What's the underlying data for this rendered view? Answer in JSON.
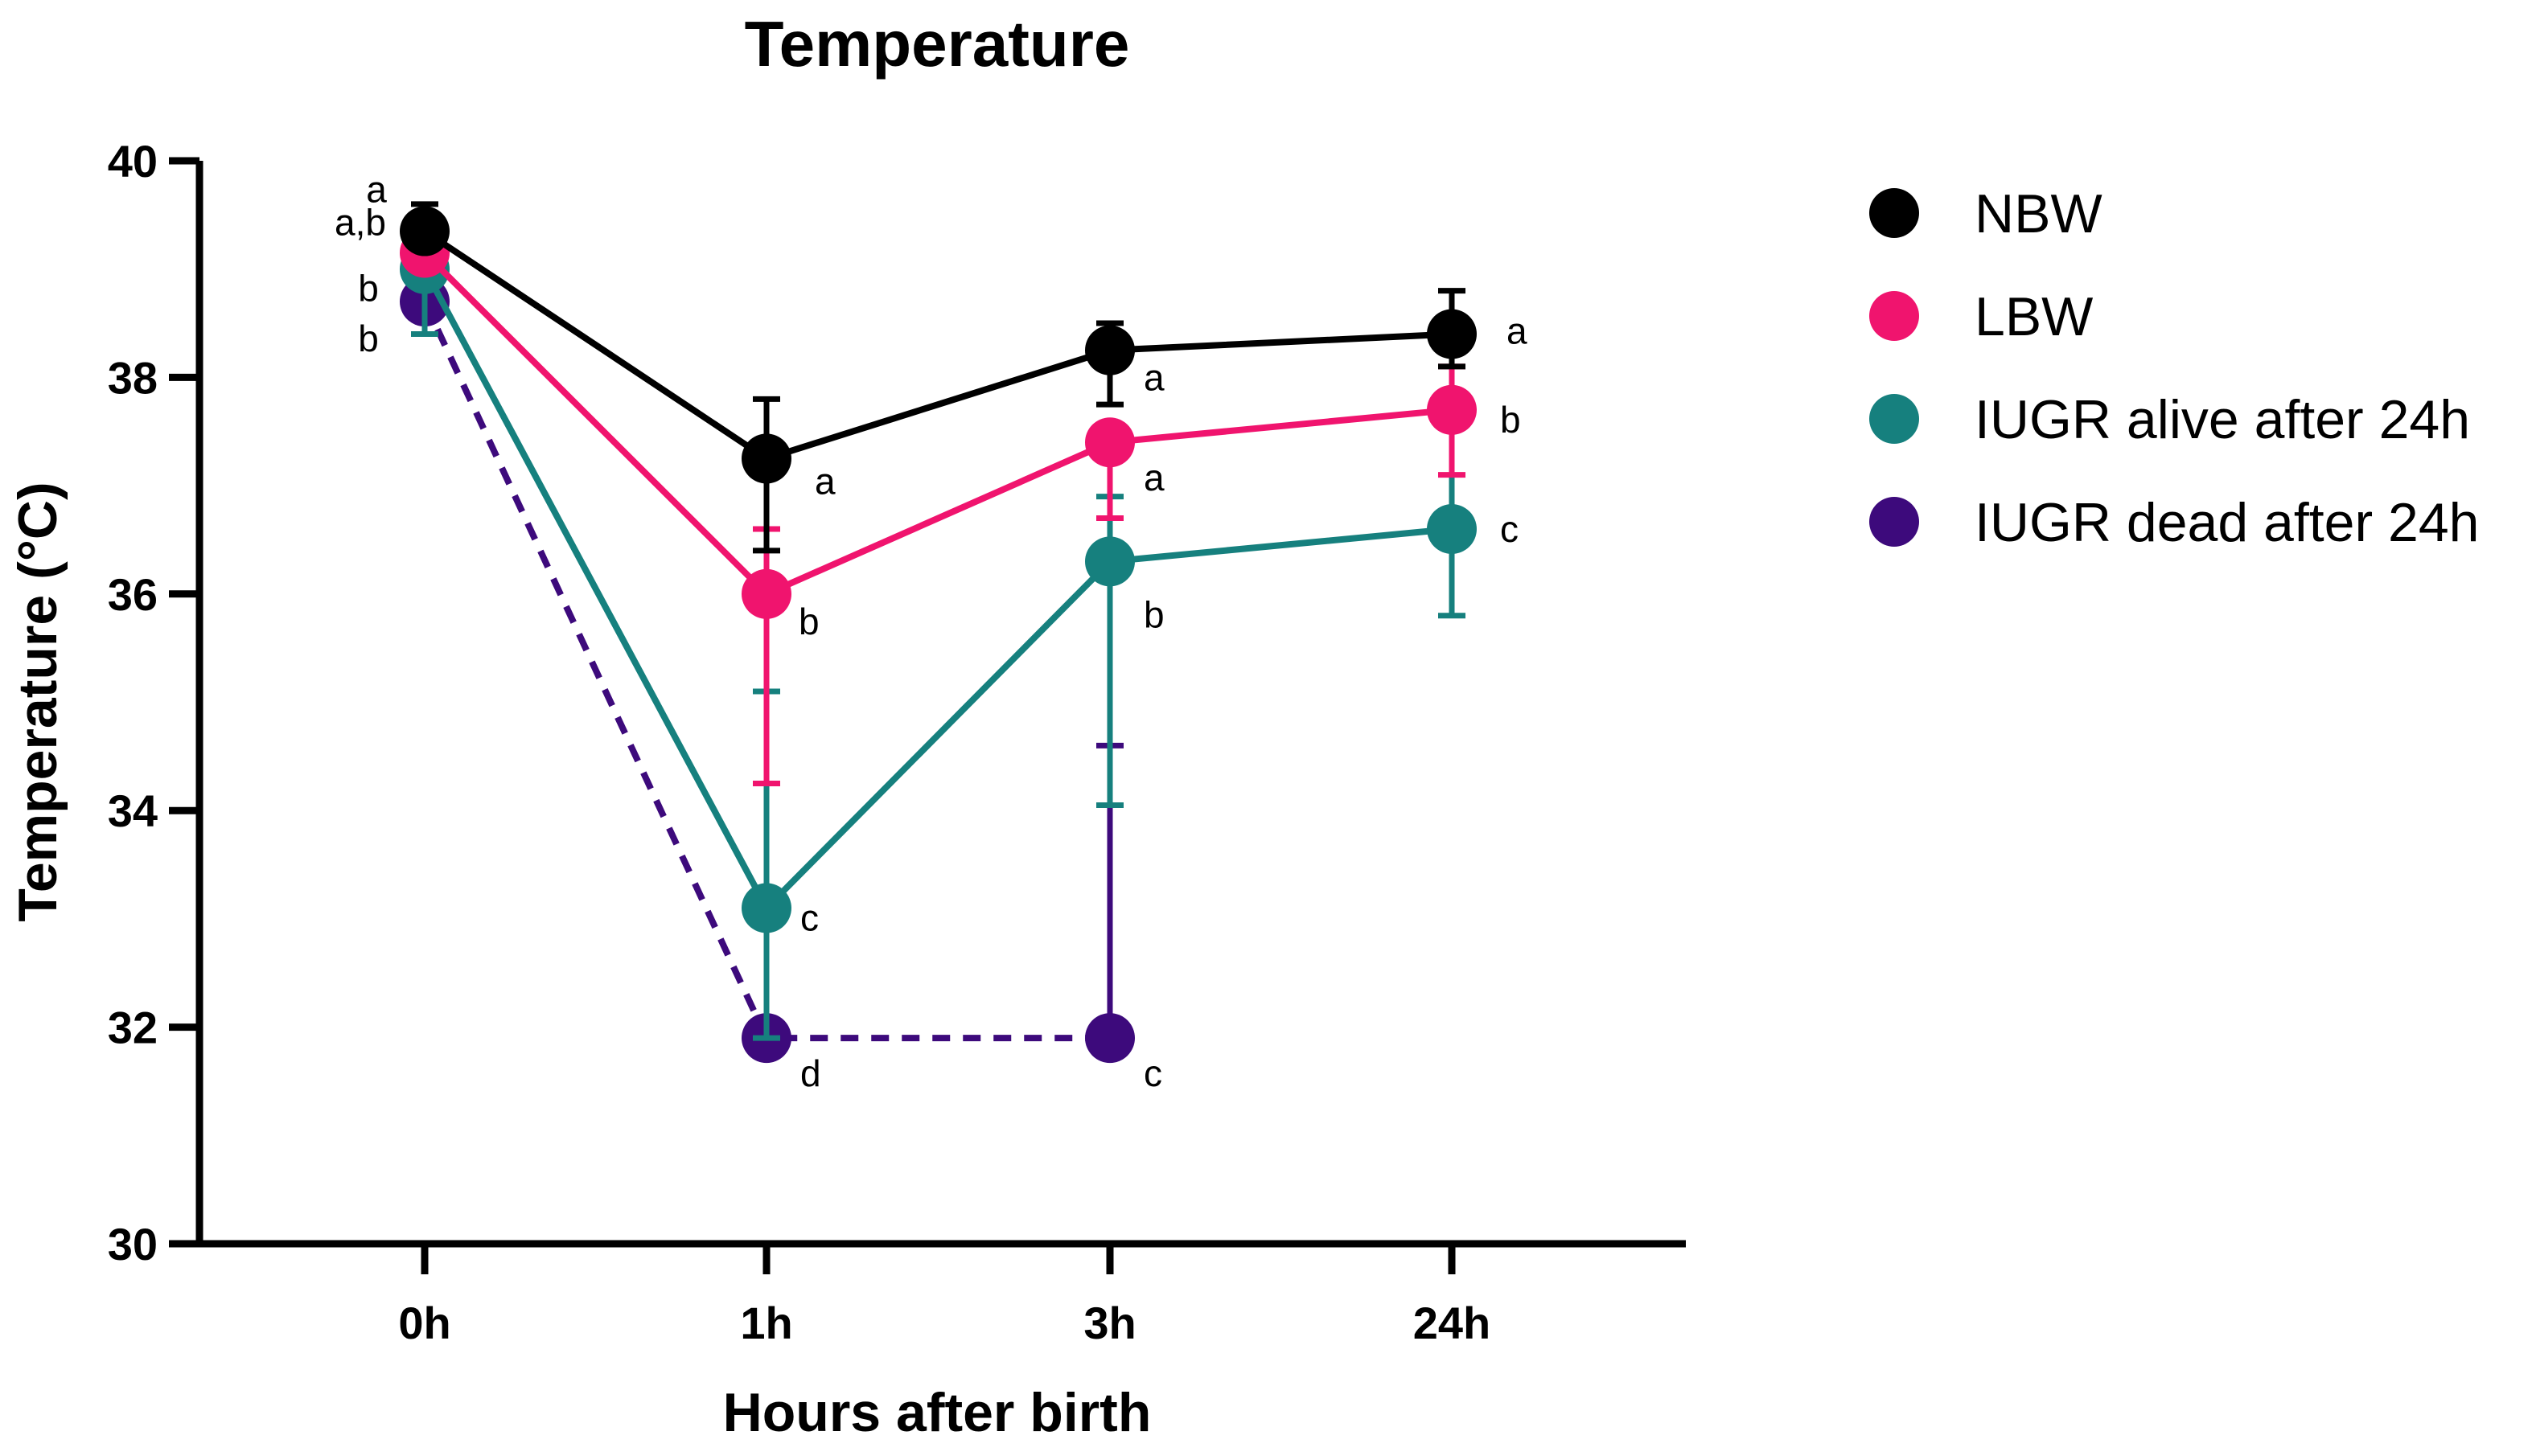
{
  "chart_data": {
    "type": "line",
    "title": "Temperature",
    "xlabel": "Hours after birth",
    "ylabel": "Temperature (°C)",
    "categories": [
      "0h",
      "1h",
      "3h",
      "24h"
    ],
    "ylim": [
      30,
      40
    ],
    "yticks": [
      30,
      32,
      34,
      36,
      38,
      40
    ],
    "legend_position": "right",
    "series": [
      {
        "name": "NBW",
        "color": "#000000",
        "dashed": false,
        "values": [
          39.35,
          37.25,
          38.25,
          38.4
        ],
        "err_upper": [
          39.6,
          37.8,
          38.5,
          38.8
        ],
        "err_lower": [
          null,
          36.4,
          37.75,
          38.1
        ],
        "letters": [
          "a",
          "a",
          "a",
          "a"
        ]
      },
      {
        "name": "LBW",
        "color": "#f0146e",
        "dashed": false,
        "values": [
          39.15,
          36.0,
          37.4,
          37.7
        ],
        "err_upper": [
          null,
          36.6,
          null,
          38.1
        ],
        "err_lower": [
          null,
          34.25,
          36.7,
          37.1
        ],
        "letters": [
          "a,b",
          "b",
          "a",
          "b"
        ]
      },
      {
        "name": "IUGR alive after 24h",
        "color": "#16807e",
        "dashed": false,
        "values": [
          39.0,
          33.1,
          36.3,
          36.6
        ],
        "err_upper": [
          null,
          35.1,
          36.9,
          37.6
        ],
        "err_lower": [
          38.4,
          31.9,
          34.05,
          35.8
        ],
        "letters": [
          "b",
          "c",
          "b",
          "c"
        ]
      },
      {
        "name": "IUGR dead after 24h",
        "color": "#3d0a7c",
        "dashed": true,
        "values": [
          38.7,
          31.9,
          31.9,
          null
        ],
        "err_upper": [
          null,
          null,
          34.6,
          null
        ],
        "err_lower": [
          null,
          null,
          null,
          null
        ],
        "letters": [
          "b",
          "d",
          "c",
          ""
        ]
      }
    ]
  }
}
